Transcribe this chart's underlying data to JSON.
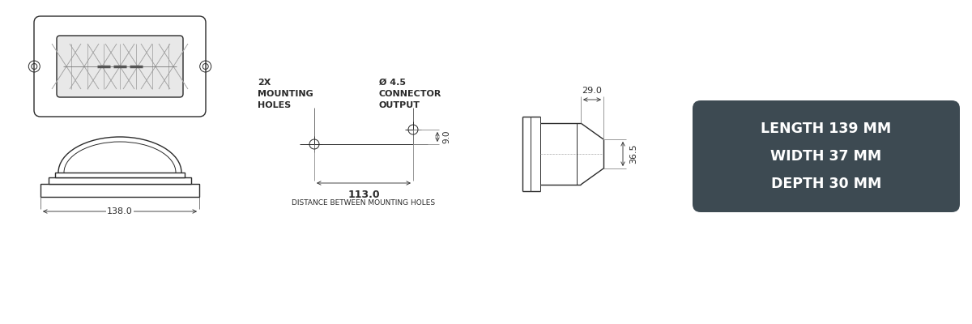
{
  "bg_color": "#ffffff",
  "line_color": "#2a2a2a",
  "box_bg_color": "#3d4a52",
  "box_text_color": "#ffffff",
  "box_text": [
    "LENGTH 139 MM",
    "WIDTH 37 MM",
    "DEPTH 30 MM"
  ],
  "dim_138": "138.0",
  "dim_29": "29.0",
  "dim_36_5": "36.5",
  "dim_9": "9.0",
  "dim_113": "113.0",
  "label_mounting": [
    "2X",
    "MOUNTING",
    "HOLES"
  ],
  "label_connector": [
    "Ø 4.5",
    "CONNECTOR",
    "OUTPUT"
  ],
  "label_distance": "DISTANCE BETWEEN MOUNTING HOLES"
}
